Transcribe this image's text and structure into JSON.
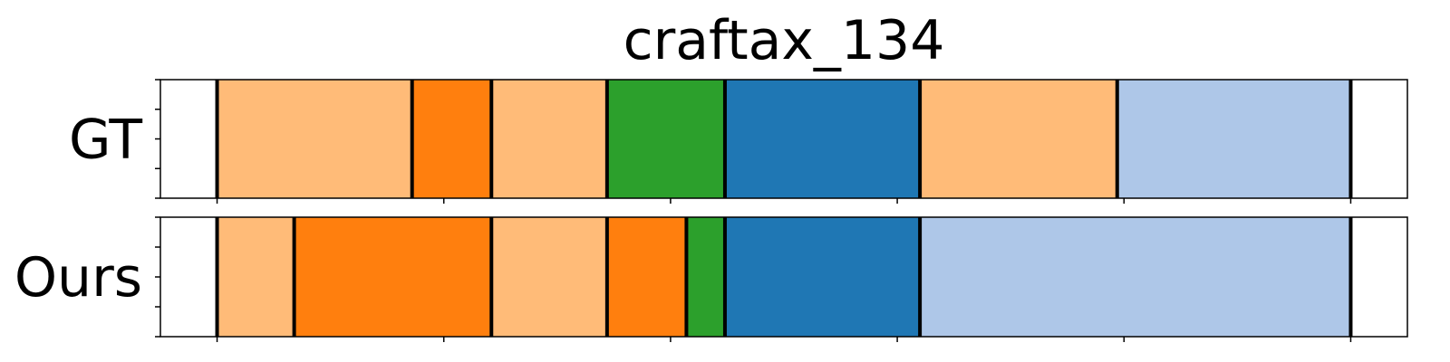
{
  "chart_data": {
    "type": "segmentation",
    "title": "craftax_134",
    "x_range": [
      -125,
      2625
    ],
    "x_ticks": [
      0,
      500,
      1000,
      1500,
      2000,
      2500
    ],
    "y_ticks_count": 5,
    "rows": [
      {
        "label": "GT",
        "segments": [
          {
            "start": 0,
            "end": 430,
            "color": "#ffbb78"
          },
          {
            "start": 430,
            "end": 605,
            "color": "#ff7f0e"
          },
          {
            "start": 605,
            "end": 860,
            "color": "#ffbb78"
          },
          {
            "start": 860,
            "end": 1120,
            "color": "#2ca02c"
          },
          {
            "start": 1120,
            "end": 1550,
            "color": "#1f77b4"
          },
          {
            "start": 1550,
            "end": 1985,
            "color": "#ffbb78"
          },
          {
            "start": 1985,
            "end": 2500,
            "color": "#aec7e8"
          }
        ]
      },
      {
        "label": "Ours",
        "segments": [
          {
            "start": 0,
            "end": 170,
            "color": "#ffbb78"
          },
          {
            "start": 170,
            "end": 605,
            "color": "#ff7f0e"
          },
          {
            "start": 605,
            "end": 860,
            "color": "#ffbb78"
          },
          {
            "start": 860,
            "end": 1035,
            "color": "#ff7f0e"
          },
          {
            "start": 1035,
            "end": 1120,
            "color": "#2ca02c"
          },
          {
            "start": 1120,
            "end": 1550,
            "color": "#1f77b4"
          },
          {
            "start": 1550,
            "end": 2500,
            "color": "#aec7e8"
          }
        ]
      }
    ]
  }
}
